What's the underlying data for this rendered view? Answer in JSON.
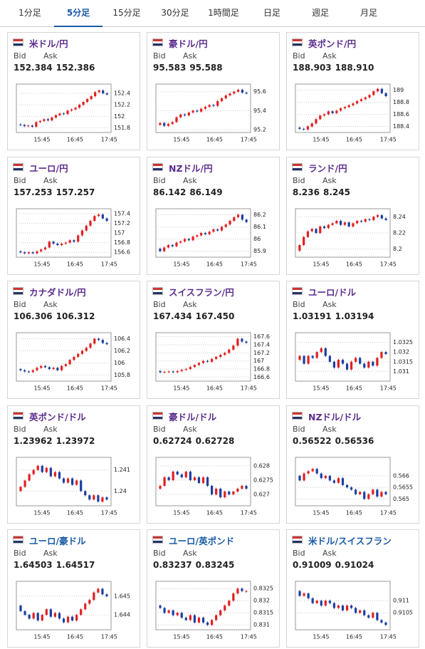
{
  "tabs": {
    "items": [
      "1分足",
      "5分足",
      "15分足",
      "30分足",
      "1時間足",
      "日足",
      "週足",
      "月足"
    ],
    "active": 1
  },
  "cards": [
    {
      "title": "米ドル/円",
      "link_color": "#5b2d8e",
      "bid_label": "Bid",
      "ask_label": "Ask",
      "bid": "152.384",
      "ask": "152.386",
      "chart": {
        "ylim": [
          151.72,
          152.56
        ],
        "yticks": [
          152.4,
          152.2,
          152,
          151.8
        ],
        "xticks": [
          "15:45",
          "16:45",
          "17:45"
        ],
        "closes": [
          151.86,
          151.85,
          151.83,
          151.84,
          151.82,
          151.9,
          151.92,
          151.95,
          151.93,
          151.98,
          152.02,
          152.05,
          152.04,
          152.1,
          152.12,
          152.15,
          152.2,
          152.25,
          152.3,
          152.35,
          152.42,
          152.45,
          152.4,
          152.38
        ]
      }
    },
    {
      "title": "豪ドル/円",
      "link_color": "#5b2d8e",
      "bid_label": "Bid",
      "ask_label": "Ask",
      "bid": "95.583",
      "ask": "95.588",
      "chart": {
        "ylim": [
          95.17,
          95.68
        ],
        "yticks": [
          95.6,
          95.4,
          95.2
        ],
        "xticks": [
          "15:45",
          "16:45",
          "17:45"
        ],
        "closes": [
          95.25,
          95.27,
          95.24,
          95.26,
          95.28,
          95.33,
          95.36,
          95.35,
          95.38,
          95.4,
          95.39,
          95.42,
          95.44,
          95.46,
          95.45,
          95.5,
          95.53,
          95.56,
          95.58,
          95.6,
          95.62,
          95.59,
          95.58
        ]
      }
    },
    {
      "title": "英ポンド/円",
      "link_color": "#5b2d8e",
      "bid_label": "Bid",
      "ask_label": "Ask",
      "bid": "188.903",
      "ask": "188.910",
      "chart": {
        "ylim": [
          188.3,
          189.1
        ],
        "yticks": [
          189,
          188.8,
          188.6,
          188.4
        ],
        "xticks": [
          "15:45",
          "16:45",
          "17:45"
        ],
        "closes": [
          188.38,
          188.36,
          188.35,
          188.4,
          188.45,
          188.52,
          188.58,
          188.6,
          188.65,
          188.62,
          188.66,
          188.7,
          188.72,
          188.75,
          188.78,
          188.82,
          188.85,
          188.88,
          188.92,
          188.98,
          189.02,
          188.95,
          188.9
        ]
      }
    },
    {
      "title": "ユーロ/円",
      "link_color": "#5b2d8e",
      "bid_label": "Bid",
      "ask_label": "Ask",
      "bid": "157.253",
      "ask": "157.257",
      "chart": {
        "ylim": [
          156.5,
          157.5
        ],
        "yticks": [
          157.4,
          157.2,
          157,
          156.8,
          156.6
        ],
        "xticks": [
          "15:45",
          "16:45",
          "17:45"
        ],
        "closes": [
          156.62,
          156.6,
          156.58,
          156.6,
          156.58,
          156.62,
          156.66,
          156.7,
          156.82,
          156.78,
          156.75,
          156.78,
          156.8,
          156.85,
          156.82,
          156.95,
          157.05,
          157.15,
          157.25,
          157.35,
          157.38,
          157.3,
          157.25
        ]
      }
    },
    {
      "title": "NZドル/円",
      "link_color": "#5b2d8e",
      "bid_label": "Bid",
      "ask_label": "Ask",
      "bid": "86.142",
      "ask": "86.149",
      "chart": {
        "ylim": [
          85.85,
          86.25
        ],
        "yticks": [
          86.2,
          86.1,
          86,
          85.9
        ],
        "xticks": [
          "15:45",
          "16:45",
          "17:45"
        ],
        "closes": [
          85.92,
          85.9,
          85.93,
          85.95,
          85.94,
          85.97,
          85.98,
          86,
          85.99,
          86.02,
          86.03,
          86.05,
          86.04,
          86.06,
          86.08,
          86.07,
          86.1,
          86.12,
          86.15,
          86.18,
          86.2,
          86.16,
          86.14
        ]
      }
    },
    {
      "title": "ランド/円",
      "link_color": "#5b2d8e",
      "bid_label": "Bid",
      "ask_label": "Ask",
      "bid": "8.236",
      "ask": "8.245",
      "chart": {
        "ylim": [
          8.19,
          8.25
        ],
        "yticks": [
          8.24,
          8.22,
          8.2
        ],
        "xticks": [
          "15:45",
          "16:45",
          "17:45"
        ],
        "closes": [
          8.198,
          8.205,
          8.215,
          8.222,
          8.225,
          8.22,
          8.228,
          8.226,
          8.23,
          8.232,
          8.235,
          8.23,
          8.233,
          8.228,
          8.232,
          8.235,
          8.234,
          8.237,
          8.236,
          8.24,
          8.242,
          8.238,
          8.236
        ]
      }
    },
    {
      "title": "カナダドル/円",
      "link_color": "#5b2d8e",
      "bid_label": "Bid",
      "ask_label": "Ask",
      "bid": "106.306",
      "ask": "106.312",
      "chart": {
        "ylim": [
          105.7,
          106.5
        ],
        "yticks": [
          106.4,
          106.2,
          106,
          105.8
        ],
        "xticks": [
          "15:45",
          "16:45",
          "17:45"
        ],
        "closes": [
          105.9,
          105.88,
          105.86,
          105.85,
          105.88,
          105.92,
          105.95,
          105.93,
          105.9,
          105.92,
          105.88,
          105.95,
          105.98,
          106.05,
          106.1,
          106.15,
          106.2,
          106.25,
          106.32,
          106.4,
          106.38,
          106.33,
          106.31
        ]
      }
    },
    {
      "title": "スイスフラン/円",
      "link_color": "#5b2d8e",
      "bid_label": "Bid",
      "ask_label": "Ask",
      "bid": "167.434",
      "ask": "167.450",
      "chart": {
        "ylim": [
          166.5,
          167.7
        ],
        "yticks": [
          167.6,
          167.4,
          167.2,
          167,
          166.8,
          166.6
        ],
        "xticks": [
          "15:45",
          "16:45",
          "17:45"
        ],
        "closes": [
          166.75,
          166.72,
          166.73,
          166.74,
          166.72,
          166.75,
          166.78,
          166.8,
          166.85,
          166.9,
          166.95,
          167,
          166.98,
          167.05,
          167.1,
          167.15,
          167.2,
          167.28,
          167.38,
          167.55,
          167.48,
          167.45
        ]
      }
    },
    {
      "title": "ユーロ/ドル",
      "link_color": "#5b2d8e",
      "bid_label": "Bid",
      "ask_label": "Ask",
      "bid": "1.03191",
      "ask": "1.03194",
      "chart": {
        "ylim": [
          1.0305,
          1.033
        ],
        "yticks": [
          1.0325,
          1.032,
          1.0315,
          1.031
        ],
        "xticks": [
          "15:45",
          "16:45",
          "17:45"
        ],
        "closes": [
          1.0316,
          1.0318,
          1.0314,
          1.0318,
          1.0317,
          1.032,
          1.0322,
          1.0318,
          1.0315,
          1.0312,
          1.0316,
          1.0314,
          1.0311,
          1.0315,
          1.0317,
          1.0314,
          1.0312,
          1.0315,
          1.0313,
          1.0317,
          1.032,
          1.0319
        ]
      }
    },
    {
      "title": "英ポンド/ドル",
      "link_color": "#5b2d8e",
      "bid_label": "Bid",
      "ask_label": "Ask",
      "bid": "1.23962",
      "ask": "1.23972",
      "chart": {
        "ylim": [
          1.2393,
          1.2416
        ],
        "yticks": [
          1.241,
          1.24
        ],
        "xticks": [
          "15:45",
          "16:45",
          "17:45"
        ],
        "closes": [
          1.24,
          1.2402,
          1.2405,
          1.2408,
          1.241,
          1.2412,
          1.2409,
          1.2411,
          1.2407,
          1.2409,
          1.2406,
          1.2404,
          1.2406,
          1.2403,
          1.2405,
          1.24,
          1.2398,
          1.2396,
          1.2398,
          1.2395,
          1.2397,
          1.2396
        ]
      }
    },
    {
      "title": "豪ドル/ドル",
      "link_color": "#5b2d8e",
      "bid_label": "Bid",
      "ask_label": "Ask",
      "bid": "0.62724",
      "ask": "0.62728",
      "chart": {
        "ylim": [
          0.6266,
          0.6283
        ],
        "yticks": [
          0.628,
          0.6275,
          0.627
        ],
        "xticks": [
          "15:45",
          "16:45",
          "17:45"
        ],
        "closes": [
          0.6272,
          0.6273,
          0.6276,
          0.6275,
          0.6278,
          0.6277,
          0.6276,
          0.6278,
          0.6275,
          0.6276,
          0.6274,
          0.6276,
          0.6273,
          0.627,
          0.6272,
          0.6269,
          0.6271,
          0.627,
          0.6271,
          0.6272,
          0.6273,
          0.6272
        ]
      }
    },
    {
      "title": "NZドル/ドル",
      "link_color": "#5b2d8e",
      "bid_label": "Bid",
      "ask_label": "Ask",
      "bid": "0.56522",
      "ask": "0.56536",
      "chart": {
        "ylim": [
          0.5647,
          0.5668
        ],
        "yticks": [
          0.566,
          0.5655,
          0.565
        ],
        "xticks": [
          "15:45",
          "16:45",
          "17:45"
        ],
        "closes": [
          0.566,
          0.5658,
          0.5661,
          0.5662,
          0.5663,
          0.5661,
          0.5659,
          0.566,
          0.5658,
          0.5657,
          0.5659,
          0.5656,
          0.5655,
          0.5654,
          0.5652,
          0.5653,
          0.565,
          0.5652,
          0.5654,
          0.5651,
          0.5653,
          0.5652
        ]
      }
    },
    {
      "title": "ユーロ/豪ドル",
      "link_color": "#1a5ba6",
      "bid_label": "Bid",
      "ask_label": "Ask",
      "bid": "1.64503",
      "ask": "1.64517",
      "chart": {
        "ylim": [
          1.6432,
          1.6458
        ],
        "yticks": [
          1.645,
          1.644
        ],
        "xticks": [
          "15:45",
          "16:45",
          "17:45"
        ],
        "closes": [
          1.6445,
          1.6442,
          1.644,
          1.6438,
          1.6441,
          1.6437,
          1.644,
          1.6443,
          1.6439,
          1.6441,
          1.6438,
          1.6436,
          1.6439,
          1.6437,
          1.644,
          1.6443,
          1.6446,
          1.6448,
          1.6452,
          1.6454,
          1.6451,
          1.645
        ]
      }
    },
    {
      "title": "ユーロ/英ポンド",
      "link_color": "#1a5ba6",
      "bid_label": "Bid",
      "ask_label": "Ask",
      "bid": "0.83237",
      "ask": "0.83245",
      "chart": {
        "ylim": [
          0.8308,
          0.8328
        ],
        "yticks": [
          0.8325,
          0.832,
          0.8315,
          0.831
        ],
        "xticks": [
          "15:45",
          "16:45",
          "17:45"
        ],
        "closes": [
          0.8318,
          0.8317,
          0.8315,
          0.8316,
          0.8314,
          0.8315,
          0.8313,
          0.8312,
          0.8314,
          0.8311,
          0.8313,
          0.8311,
          0.831,
          0.8312,
          0.8314,
          0.8316,
          0.8318,
          0.832,
          0.8323,
          0.8325,
          0.8324,
          0.8324
        ]
      }
    },
    {
      "title": "米ドル/スイスフラン",
      "link_color": "#1a5ba6",
      "bid_label": "Bid",
      "ask_label": "Ask",
      "bid": "0.91009",
      "ask": "0.91024",
      "chart": {
        "ylim": [
          0.9098,
          0.9118
        ],
        "yticks": [
          0.911,
          0.9105
        ],
        "xticks": [
          "15:45",
          "16:45",
          "17:45"
        ],
        "closes": [
          0.9114,
          0.9112,
          0.9113,
          0.9111,
          0.9109,
          0.911,
          0.9108,
          0.911,
          0.9109,
          0.9107,
          0.9108,
          0.9106,
          0.9108,
          0.9107,
          0.9105,
          0.9106,
          0.9104,
          0.9103,
          0.9105,
          0.9102,
          0.9101,
          0.91
        ]
      }
    }
  ]
}
